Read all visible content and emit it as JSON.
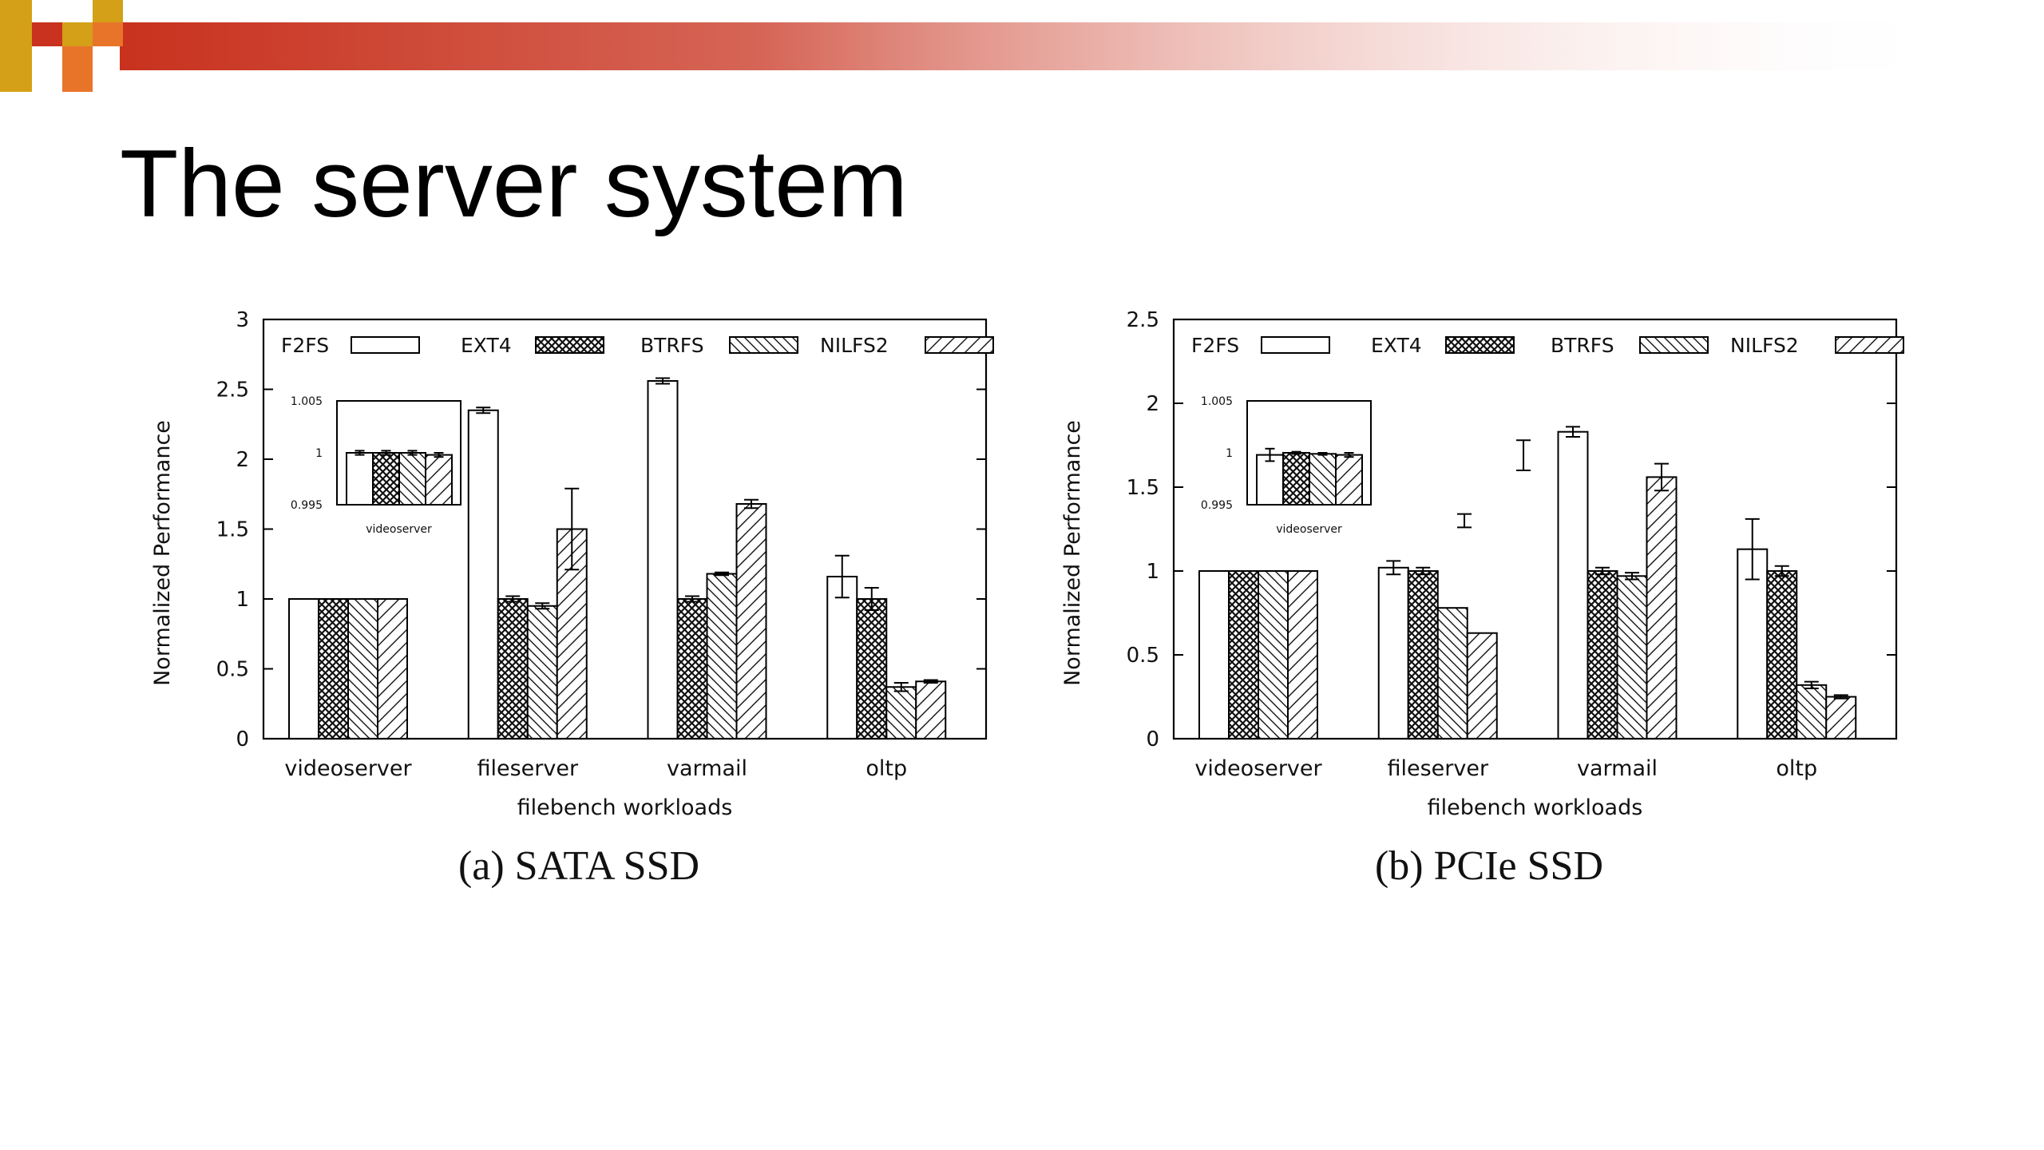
{
  "slide": {
    "title": "The server system"
  },
  "colors": {
    "banner_start": "#c8321e",
    "banner_end": "#ffffff",
    "checker_gold": "#d4a017",
    "checker_orange": "#e8742a",
    "checker_red": "#c8321e"
  },
  "chart_data": [
    {
      "type": "bar",
      "caption": "(a) SATA SSD",
      "categories": [
        "videoserver",
        "fileserver",
        "varmail",
        "oltp"
      ],
      "xlabel": "filebench workloads",
      "ylabel": "Normalized Performance",
      "ylim": [
        0,
        3
      ],
      "yticks": [
        "0",
        "0.5",
        "1",
        "1.5",
        "2",
        "2.5",
        "3"
      ],
      "legend_position": "top",
      "series": [
        {
          "name": "F2FS",
          "pattern": "plain",
          "values": [
            1.0,
            2.35,
            2.56,
            1.16
          ],
          "errors": [
            0,
            0.02,
            0.02,
            0.15
          ]
        },
        {
          "name": "EXT4",
          "pattern": "crosshatch",
          "values": [
            1.0,
            1.0,
            1.0,
            1.0
          ],
          "errors": [
            0,
            0.02,
            0.02,
            0.08
          ]
        },
        {
          "name": "BTRFS",
          "pattern": "backslash",
          "values": [
            1.0,
            0.95,
            1.18,
            0.37
          ],
          "errors": [
            0,
            0.02,
            0.01,
            0.03
          ]
        },
        {
          "name": "NILFS2",
          "pattern": "slash",
          "values": [
            1.0,
            1.5,
            1.68,
            0.41
          ],
          "errors": [
            0,
            0.29,
            0.03,
            0.01
          ]
        }
      ],
      "inset": {
        "xlabel": "videoserver",
        "ylim": [
          0.995,
          1.005
        ],
        "yticks": [
          "0.995",
          "1",
          "1.005"
        ],
        "values": [
          1.0,
          1.0,
          1.0,
          0.9998
        ],
        "errors": [
          0.0002,
          0.0002,
          0.0002,
          0.0002
        ]
      }
    },
    {
      "type": "bar",
      "caption": "(b) PCIe SSD",
      "categories": [
        "videoserver",
        "fileserver",
        "varmail",
        "oltp"
      ],
      "xlabel": "filebench workloads",
      "ylabel": "Normalized Performance",
      "ylim": [
        0,
        2.5
      ],
      "yticks": [
        "0",
        "0.5",
        "1",
        "1.5",
        "2",
        "2.5"
      ],
      "legend_position": "top",
      "series": [
        {
          "name": "F2FS",
          "pattern": "plain",
          "values": [
            1.0,
            1.02,
            1.83,
            1.13
          ],
          "errors": [
            0,
            0.04,
            0.03,
            0.18
          ]
        },
        {
          "name": "EXT4",
          "pattern": "crosshatch",
          "values": [
            1.0,
            1.0,
            1.0,
            1.0
          ],
          "errors": [
            0,
            0.02,
            0.02,
            0.03
          ]
        },
        {
          "name": "BTRFS",
          "pattern": "backslash",
          "values": [
            1.0,
            0.78,
            0.97,
            0.32
          ],
          "errors": [
            0,
            0,
            0.02,
            0.02
          ]
        },
        {
          "name": "NILFS2",
          "pattern": "slash",
          "values": [
            1.0,
            0.63,
            1.56,
            0.25
          ],
          "errors": [
            0,
            0,
            0.08,
            0.01
          ]
        }
      ],
      "floating_errorbars": [
        {
          "x_category": "fileserver",
          "x_offset": 1.45,
          "low": 1.26,
          "high": 1.34
        },
        {
          "x_category": "fileserver",
          "x_offset": 2.45,
          "low": 1.6,
          "high": 1.78
        }
      ],
      "inset": {
        "xlabel": "videoserver",
        "ylim": [
          0.995,
          1.005
        ],
        "yticks": [
          "0.995",
          "1",
          "1.005"
        ],
        "values": [
          0.9998,
          1.0,
          0.9999,
          0.9998
        ],
        "errors": [
          0.0006,
          0.0001,
          0.0001,
          0.0002
        ]
      }
    }
  ]
}
